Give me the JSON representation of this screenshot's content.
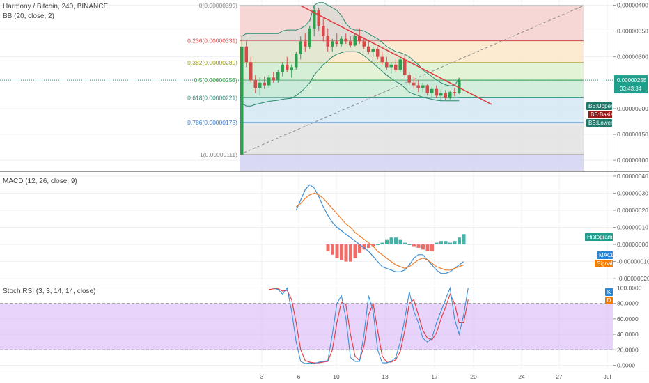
{
  "title": "Harmony / Bitcoin, 240, BINANCE",
  "indicators": {
    "bb": "BB (20, close, 2)",
    "macd": "MACD (12, 26, close, 9)",
    "stoch": "Stoch RSI (3, 3, 14, 14, close)"
  },
  "colors": {
    "grid": "#eef0f3",
    "border": "#999999",
    "candle_up": "#2e9e4f",
    "candle_down": "#d64a4a",
    "bb": "#2b8a6e",
    "trend": "#e0393e",
    "macd": "#3c8fd4",
    "signal": "#f07c2a",
    "hist_up": "#26a69a",
    "hist_down": "#ef5350",
    "stoch_k": "#3c8fd4",
    "stoch_d": "#e0393e",
    "stoch_band": "#d9b8f7",
    "price_tag": "#1f9e8b",
    "bb_upper_tag": "#1f7a6b",
    "bb_basis_tag": "#9b1c1c",
    "bb_lower_tag": "#1f7a6b",
    "histogram_tag": "#1f9e8b",
    "macd_tag": "#2a87d8",
    "signal_tag": "#f57c00",
    "k_tag": "#2a87d8",
    "d_tag": "#f57c00"
  },
  "chart_data": [
    {
      "type": "candlestick",
      "name": "price",
      "ylim": [
        8e-07,
        4.1e-06
      ],
      "y_ticks": [
        {
          "value": 4e-06,
          "label": "0.00000400"
        },
        {
          "value": 3.5e-06,
          "label": "0.00000350"
        },
        {
          "value": 3e-06,
          "label": "0.00000300"
        },
        {
          "value": 2e-06,
          "label": "0.00000200"
        },
        {
          "value": 1.5e-06,
          "label": "0.00000150"
        },
        {
          "value": 1e-06,
          "label": "0.00000100"
        }
      ],
      "x_ticks": [
        "3",
        "6",
        "10",
        "13",
        "17",
        "20",
        "24",
        "27",
        "Jul"
      ],
      "last_price": {
        "value": 2.55e-06,
        "label": "0.00000255",
        "countdown": "03:43:34"
      },
      "fib_levels": [
        {
          "ratio": "0",
          "value": 3.99e-06,
          "label": "0(0.00000399)",
          "color": "#888888",
          "fill": "#f6cfcf"
        },
        {
          "ratio": "0.236",
          "value": 3.31e-06,
          "label": "0.236(0.00000331)",
          "color": "#d64a4a",
          "fill": "#fbe6c9"
        },
        {
          "ratio": "0.382",
          "value": 2.89e-06,
          "label": "0.382(0.00000289)",
          "color": "#9a9a1a",
          "fill": "#def2cf"
        },
        {
          "ratio": "0.5",
          "value": 2.55e-06,
          "label": "0.5(0.00000255)",
          "color": "#3a9a3a",
          "fill": "#cdebd6"
        },
        {
          "ratio": "0.618",
          "value": 2.21e-06,
          "label": "0.618(0.00000221)",
          "color": "#2a8a7a",
          "fill": "#d3e7f3"
        },
        {
          "ratio": "0.786",
          "value": 1.73e-06,
          "label": "0.786(0.00000173)",
          "color": "#3a7ac9",
          "fill": "#e2e2e2"
        },
        {
          "ratio": "1",
          "value": 1.11e-06,
          "label": "1(0.00000111)",
          "color": "#888888",
          "fill": "#d4d2f2"
        }
      ],
      "candles": [
        [
          1.11e-06,
          3.4e-06,
          1.11e-06,
          3.2e-06
        ],
        [
          3.2e-06,
          3.3e-06,
          2.8e-06,
          2.9e-06
        ],
        [
          2.9e-06,
          3e-06,
          2.5e-06,
          2.55e-06
        ],
        [
          2.55e-06,
          2.65e-06,
          2.3e-06,
          2.4e-06
        ],
        [
          2.4e-06,
          2.6e-06,
          2.25e-06,
          2.5e-06
        ],
        [
          2.5e-06,
          2.62e-06,
          2.38e-06,
          2.45e-06
        ],
        [
          2.45e-06,
          2.65e-06,
          2.4e-06,
          2.6e-06
        ],
        [
          2.6e-06,
          2.7e-06,
          2.5e-06,
          2.55e-06
        ],
        [
          2.55e-06,
          2.75e-06,
          2.5e-06,
          2.7e-06
        ],
        [
          2.7e-06,
          2.9e-06,
          2.62e-06,
          2.85e-06
        ],
        [
          2.85e-06,
          3e-06,
          2.7e-06,
          2.75e-06
        ],
        [
          2.75e-06,
          2.85e-06,
          2.6e-06,
          2.8e-06
        ],
        [
          2.8e-06,
          3.1e-06,
          2.75e-06,
          3.05e-06
        ],
        [
          3.05e-06,
          3.4e-06,
          2.95e-06,
          3.3e-06
        ],
        [
          3.3e-06,
          3.45e-06,
          3.1e-06,
          3.2e-06
        ],
        [
          3.2e-06,
          3.6e-06,
          3.15e-06,
          3.55e-06
        ],
        [
          3.55e-06,
          4e-06,
          3.4e-06,
          3.9e-06
        ],
        [
          3.9e-06,
          3.95e-06,
          3.5e-06,
          3.6e-06
        ],
        [
          3.6e-06,
          3.75e-06,
          3.3e-06,
          3.4e-06
        ],
        [
          3.4e-06,
          3.55e-06,
          3.1e-06,
          3.2e-06
        ],
        [
          3.2e-06,
          3.35e-06,
          3.1e-06,
          3.3e-06
        ],
        [
          3.3e-06,
          3.45e-06,
          3.2e-06,
          3.25e-06
        ],
        [
          3.25e-06,
          3.4e-06,
          3.2e-06,
          3.35e-06
        ],
        [
          3.35e-06,
          3.45e-06,
          3.25e-06,
          3.3e-06
        ],
        [
          3.3e-06,
          3.4e-06,
          3.18e-06,
          3.22e-06
        ],
        [
          3.22e-06,
          3.45e-06,
          3.2e-06,
          3.4e-06
        ],
        [
          3.4e-06,
          3.55e-06,
          3.25e-06,
          3.3e-06
        ],
        [
          3.3e-06,
          3.38e-06,
          3.15e-06,
          3.2e-06
        ],
        [
          3.2e-06,
          3.3e-06,
          3.05e-06,
          3.1e-06
        ],
        [
          3.1e-06,
          3.2e-06,
          3e-06,
          3.15e-06
        ],
        [
          3.15e-06,
          3.18e-06,
          2.95e-06,
          3e-06
        ],
        [
          3e-06,
          3.1e-06,
          2.85e-06,
          2.9e-06
        ],
        [
          2.9e-06,
          3e-06,
          2.75e-06,
          2.8e-06
        ],
        [
          2.8e-06,
          2.9e-06,
          2.68e-06,
          2.85e-06
        ],
        [
          2.85e-06,
          2.95e-06,
          2.7e-06,
          2.75e-06
        ],
        [
          2.75e-06,
          3e-06,
          2.7e-06,
          2.95e-06
        ],
        [
          2.95e-06,
          3.05e-06,
          2.6e-06,
          2.65e-06
        ],
        [
          2.65e-06,
          2.7e-06,
          2.45e-06,
          2.5e-06
        ],
        [
          2.5e-06,
          2.62e-06,
          2.38e-06,
          2.45e-06
        ],
        [
          2.45e-06,
          2.55e-06,
          2.32e-06,
          2.4e-06
        ],
        [
          2.4e-06,
          2.5e-06,
          2.32e-06,
          2.45e-06
        ],
        [
          2.45e-06,
          2.48e-06,
          2.25e-06,
          2.3e-06
        ],
        [
          2.3e-06,
          2.42e-06,
          2.22e-06,
          2.38e-06
        ],
        [
          2.38e-06,
          2.45e-06,
          2.2e-06,
          2.25e-06
        ],
        [
          2.25e-06,
          2.35e-06,
          2.15e-06,
          2.3e-06
        ],
        [
          2.3e-06,
          2.36e-06,
          2.16e-06,
          2.2e-06
        ],
        [
          2.2e-06,
          2.34e-06,
          2.18e-06,
          2.32e-06
        ],
        [
          2.32e-06,
          2.4e-06,
          2.24e-06,
          2.3e-06
        ],
        [
          2.3e-06,
          2.6e-06,
          2.28e-06,
          2.55e-06
        ]
      ],
      "bb_upper": [
        3.4e-06,
        3.45e-06,
        3.45e-06,
        3.45e-06,
        3.45e-06,
        3.45e-06,
        3.45e-06,
        3.45e-06,
        3.45e-06,
        3.5e-06,
        3.52e-06,
        3.52e-06,
        3.52e-06,
        3.55e-06,
        3.6e-06,
        3.7e-06,
        4e-06,
        4.05e-06,
        4.05e-06,
        4e-06,
        3.95e-06,
        3.9e-06,
        3.8e-06,
        3.65e-06,
        3.55e-06,
        3.52e-06,
        3.52e-06,
        3.5e-06,
        3.45e-06,
        3.4e-06,
        3.35e-06,
        3.28e-06,
        3.2e-06,
        3.15e-06,
        3.1e-06,
        3.08e-06,
        3.05e-06,
        3e-06,
        2.92e-06,
        2.85e-06,
        2.75e-06,
        2.68e-06,
        2.62e-06,
        2.55e-06,
        2.5e-06,
        2.46e-06,
        2.44e-06,
        2.45e-06,
        2.58e-06
      ],
      "bb_lower": [
        2.1e-06,
        2.05e-06,
        2.05e-06,
        2.08e-06,
        2.1e-06,
        2.12e-06,
        2.14e-06,
        2.15e-06,
        2.16e-06,
        2.18e-06,
        2.19e-06,
        2.2e-06,
        2.25e-06,
        2.32e-06,
        2.4e-06,
        2.5e-06,
        2.65e-06,
        2.75e-06,
        2.85e-06,
        2.92e-06,
        3e-06,
        3.05e-06,
        3.08e-06,
        3.1e-06,
        3.1e-06,
        3.1e-06,
        3.08e-06,
        3.02e-06,
        2.95e-06,
        2.88e-06,
        2.8e-06,
        2.72e-06,
        2.65e-06,
        2.58e-06,
        2.52e-06,
        2.48e-06,
        2.4e-06,
        2.32e-06,
        2.28e-06,
        2.25e-06,
        2.22e-06,
        2.2e-06,
        2.18e-06,
        2.16e-06,
        2.15e-06,
        2.15e-06,
        2.15e-06,
        2.15e-06,
        2.15e-06
      ],
      "bb_basis": [
        2.75e-06,
        2.72e-06,
        2.7e-06,
        2.68e-06,
        2.66e-06,
        2.65e-06,
        2.66e-06,
        2.68e-06,
        2.72e-06,
        2.76e-06,
        2.8e-06,
        2.85e-06,
        2.9e-06,
        2.96e-06,
        3.02e-06,
        3.1e-06,
        3.18e-06,
        3.24e-06,
        3.28e-06,
        3.3e-06,
        3.3e-06,
        3.3e-06,
        3.3e-06,
        3.29e-06,
        3.28e-06,
        3.27e-06,
        3.25e-06,
        3.22e-06,
        3.18e-06,
        3.13e-06,
        3.07e-06,
        3e-06,
        2.94e-06,
        2.88e-06,
        2.82e-06,
        2.76e-06,
        2.7e-06,
        2.63e-06,
        2.56e-06,
        2.5e-06,
        2.45e-06,
        2.4e-06,
        2.36e-06,
        2.32e-06,
        2.3e-06,
        2.29e-06,
        2.29e-06,
        2.3e-06,
        2.34e-06
      ],
      "bb_tags": {
        "upper": "BB:Upper",
        "basis": "BB:Basis",
        "lower": "BB:Lower"
      }
    },
    {
      "type": "line",
      "name": "macd",
      "ylim": [
        -2.2e-07,
        4.2e-07
      ],
      "y_ticks": [
        {
          "value": 4e-07,
          "label": "0.00000040"
        },
        {
          "value": 3e-07,
          "label": "0.00000030"
        },
        {
          "value": 2e-07,
          "label": "0.00000020"
        },
        {
          "value": 1e-07,
          "label": "0.00000010"
        },
        {
          "value": 0.0,
          "label": "0.00000000"
        },
        {
          "value": -1e-07,
          "label": "-0.00000010"
        },
        {
          "value": -2e-07,
          "label": "-0.00000020"
        }
      ],
      "start_index": 12,
      "macd": [
        2e-07,
        2.6e-07,
        3.2e-07,
        3.5e-07,
        3.3e-07,
        2.8e-07,
        2.2e-07,
        1.7e-07,
        1.3e-07,
        1e-07,
        8e-08,
        6e-08,
        4e-08,
        2e-08,
        0.0,
        -2e-08,
        -4e-08,
        -7e-08,
        -1e-07,
        -1.3e-07,
        -1.4e-07,
        -1.5e-07,
        -1.6e-07,
        -1.6e-07,
        -1.5e-07,
        -1.2e-07,
        -8e-08,
        -6e-08,
        -6e-08,
        -9e-08,
        -1.2e-07,
        -1.5e-07,
        -1.7e-07,
        -1.7e-07,
        -1.6e-07,
        -1.4e-07,
        -1.2e-07,
        -1e-07
      ],
      "signal": [
        2.2e-07,
        2.4e-07,
        2.7e-07,
        2.9e-07,
        3e-07,
        2.9e-07,
        2.7e-07,
        2.4e-07,
        2.1e-07,
        1.8e-07,
        1.5e-07,
        1.2e-07,
        1e-07,
        7e-08,
        5e-08,
        3e-08,
        1e-08,
        -1e-08,
        -4e-08,
        -6e-08,
        -8e-08,
        -1e-07,
        -1.2e-07,
        -1.3e-07,
        -1.4e-07,
        -1.3e-07,
        -1.1e-07,
        -9e-08,
        -8e-08,
        -9e-08,
        -1.1e-07,
        -1.3e-07,
        -1.4e-07,
        -1.5e-07,
        -1.5e-07,
        -1.4e-07,
        -1.3e-07,
        -1.2e-07
      ],
      "hist_start_index": 19,
      "histogram": [
        -4e-08,
        -6e-08,
        -8e-08,
        -9e-08,
        -1e-07,
        -1e-07,
        -8e-08,
        -5e-08,
        -3e-08,
        -2e-08,
        -1e-08,
        0.0,
        1e-08,
        3e-08,
        4e-08,
        4e-08,
        3e-08,
        1e-08,
        0.0,
        -1e-08,
        -2e-08,
        -3e-08,
        -4e-08,
        -4e-08,
        1e-08,
        2e-08,
        2e-08,
        1e-08,
        2e-08,
        4e-08,
        6e-08
      ],
      "tags": {
        "histogram": "Histogram",
        "macd": "MACD",
        "signal": "Signal"
      }
    },
    {
      "type": "line",
      "name": "stoch_rsi",
      "ylim": [
        -5,
        105
      ],
      "y_ticks": [
        {
          "value": 100,
          "label": "100.0000"
        },
        {
          "value": 80,
          "label": "80.0000"
        },
        {
          "value": 60,
          "label": "60.0000"
        },
        {
          "value": 40,
          "label": "40.0000"
        },
        {
          "value": 20,
          "label": "20.0000"
        },
        {
          "value": 0,
          "label": "0.0000"
        }
      ],
      "band": [
        20,
        80
      ],
      "start_index": 6,
      "k": [
        100,
        100,
        98,
        92,
        100,
        70,
        30,
        5,
        2,
        3,
        2,
        4,
        5,
        6,
        40,
        80,
        90,
        60,
        10,
        5,
        5,
        40,
        90,
        70,
        20,
        3,
        3,
        5,
        10,
        30,
        60,
        95,
        70,
        55,
        35,
        30,
        35,
        55,
        70,
        85,
        100,
        60,
        40,
        65,
        100
      ],
      "d": [
        98,
        99,
        99,
        96,
        97,
        85,
        55,
        20,
        6,
        4,
        3,
        3,
        4,
        5,
        20,
        55,
        82,
        78,
        40,
        12,
        6,
        25,
        65,
        80,
        45,
        12,
        4,
        4,
        7,
        18,
        45,
        80,
        85,
        65,
        45,
        35,
        33,
        42,
        60,
        75,
        92,
        80,
        55,
        55,
        85
      ],
      "tags": {
        "k": "K",
        "d": "D"
      }
    }
  ]
}
